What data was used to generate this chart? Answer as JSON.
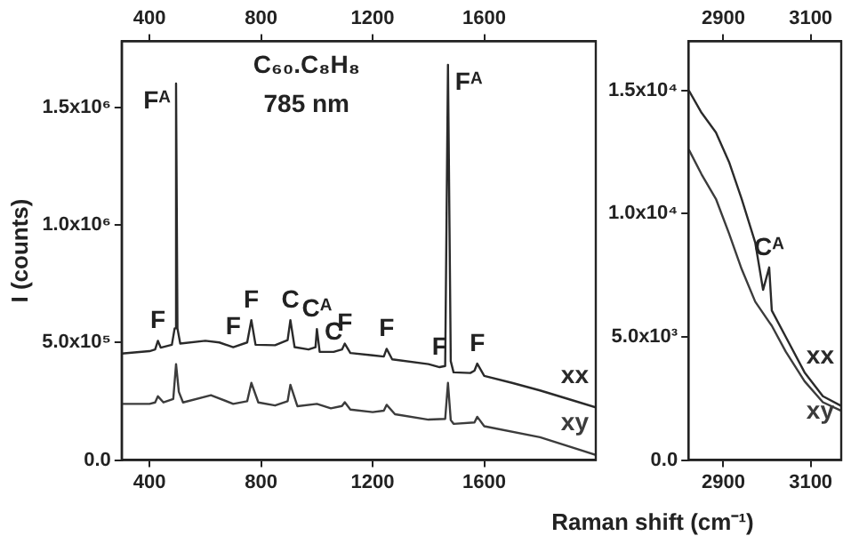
{
  "chart_data": [
    {
      "type": "line",
      "title": "C₆₀.C₈H₈",
      "subtitle": "785 nm",
      "xlabel": "Raman shift (cm⁻¹)",
      "ylabel": "I (counts)",
      "xlim": [
        300,
        2000
      ],
      "xticks": [
        400,
        800,
        1200,
        1600
      ],
      "x2lim": [
        300,
        2000
      ],
      "x2ticks": [
        400,
        800,
        1200,
        1600
      ],
      "ylim": [
        0,
        1780000
      ],
      "yticks": [
        {
          "value": 0,
          "label": "0.0"
        },
        {
          "value": 500000,
          "label": "5.0x10⁵"
        },
        {
          "value": 1000000,
          "label": "1.0x10⁶"
        },
        {
          "value": 1500000,
          "label": "1.5x10⁶"
        }
      ],
      "grid": false,
      "legend": false,
      "marker": "none",
      "line_style": "solid",
      "series": [
        {
          "name": "xx",
          "color": "#2a2a2a",
          "x": [
            300,
            400,
            420,
            430,
            440,
            480,
            490,
            495,
            500,
            510,
            600,
            650,
            700,
            750,
            765,
            780,
            850,
            895,
            905,
            920,
            970,
            995,
            1000,
            1010,
            1060,
            1090,
            1100,
            1120,
            1200,
            1240,
            1250,
            1270,
            1400,
            1440,
            1460,
            1470,
            1480,
            1490,
            1550,
            1565,
            1575,
            1600,
            1700,
            1800,
            1900,
            2000
          ],
          "values": [
            453000,
            463000,
            470000,
            507000,
            478000,
            490000,
            560000,
            1600000,
            560000,
            495000,
            507000,
            500000,
            480000,
            500000,
            595000,
            490000,
            488000,
            510000,
            595000,
            480000,
            470000,
            480000,
            557000,
            460000,
            460000,
            470000,
            495000,
            455000,
            445000,
            440000,
            473000,
            428000,
            408000,
            395000,
            400000,
            1680000,
            420000,
            373000,
            370000,
            380000,
            410000,
            358000,
            328000,
            296000,
            260000,
            224000
          ]
        },
        {
          "name": "xy",
          "color": "#3c3c3c",
          "x": [
            300,
            400,
            420,
            430,
            450,
            485,
            495,
            505,
            520,
            620,
            700,
            750,
            765,
            790,
            850,
            895,
            905,
            930,
            1000,
            1050,
            1090,
            1100,
            1120,
            1200,
            1240,
            1250,
            1280,
            1400,
            1460,
            1470,
            1480,
            1490,
            1565,
            1575,
            1600,
            1800,
            2000
          ],
          "values": [
            239000,
            239000,
            245000,
            271000,
            245000,
            260000,
            408000,
            290000,
            245000,
            276000,
            239000,
            250000,
            328000,
            245000,
            232000,
            250000,
            320000,
            229000,
            239000,
            220000,
            230000,
            246000,
            215000,
            204000,
            210000,
            235000,
            195000,
            172000,
            175000,
            328000,
            170000,
            154000,
            160000,
            184000,
            144000,
            97000,
            22000
          ]
        }
      ],
      "annotations": [
        {
          "text": "F",
          "x": 430,
          "y": 507000
        },
        {
          "text": "Fᴬ",
          "x": 495,
          "y": 1600000
        },
        {
          "text": "F",
          "x": 700,
          "y": 480000
        },
        {
          "text": "F",
          "x": 765,
          "y": 595000
        },
        {
          "text": "C",
          "x": 905,
          "y": 595000
        },
        {
          "text": "Cᴬ",
          "x": 1000,
          "y": 557000
        },
        {
          "text": "C",
          "x": 1060,
          "y": 460000
        },
        {
          "text": "F",
          "x": 1100,
          "y": 495000
        },
        {
          "text": "F",
          "x": 1250,
          "y": 473000
        },
        {
          "text": "F",
          "x": 1440,
          "y": 395000
        },
        {
          "text": "Fᴬ",
          "x": 1470,
          "y": 1680000
        },
        {
          "text": "F",
          "x": 1575,
          "y": 410000
        }
      ]
    },
    {
      "type": "line",
      "xlim": [
        2820,
        3170
      ],
      "xticks": [
        2900,
        3100
      ],
      "x2lim": [
        2820,
        3170
      ],
      "x2ticks": [
        2900,
        3100
      ],
      "ylim": [
        0,
        17000
      ],
      "yticks": [
        {
          "value": 0,
          "label": "0.0"
        },
        {
          "value": 5000,
          "label": "5.0x10³"
        },
        {
          "value": 10000,
          "label": "1.0x10⁴"
        },
        {
          "value": 15000,
          "label": "1.5x10⁴"
        }
      ],
      "grid": false,
      "legend": false,
      "marker": "none",
      "line_style": "solid",
      "series": [
        {
          "name": "xx",
          "color": "#2a2a2a",
          "x": [
            2821,
            2850,
            2883,
            2913,
            2942,
            2973,
            2991,
            3005,
            3011,
            3043,
            3086,
            3128,
            3170
          ],
          "values": [
            15000,
            14100,
            13300,
            12100,
            10600,
            8830,
            6910,
            7820,
            6070,
            5000,
            3560,
            2590,
            2200
          ]
        },
        {
          "name": "xy",
          "color": "#3c3c3c",
          "x": [
            2821,
            2850,
            2883,
            2913,
            2942,
            2973,
            3005,
            3011,
            3043,
            3086,
            3128,
            3170
          ],
          "values": [
            12600,
            11600,
            10600,
            9200,
            7750,
            6430,
            5600,
            5450,
            4400,
            3200,
            2350,
            2000
          ]
        }
      ],
      "annotations": [
        {
          "text": "Cᴬ",
          "x": 3005,
          "y": 7820
        }
      ]
    }
  ]
}
